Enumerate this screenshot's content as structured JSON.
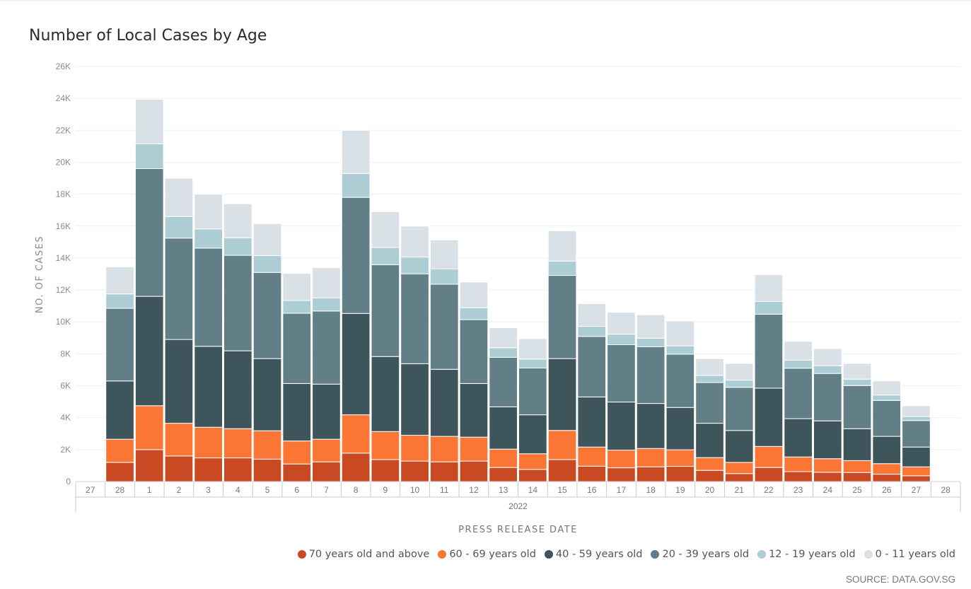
{
  "title": "Number of Local Cases by Age",
  "source": "SOURCE: DATA.GOV.SG",
  "chart_data": {
    "type": "bar",
    "stacked": true,
    "title": "Number of Local Cases by Age",
    "xlabel": "PRESS RELEASE DATE",
    "ylabel": "NO. OF CASES",
    "year_label": "2022",
    "ylim": [
      0,
      26000
    ],
    "yticks": [
      "0",
      "2K",
      "4K",
      "6K",
      "8K",
      "10K",
      "12K",
      "14K",
      "16K",
      "18K",
      "20K",
      "22K",
      "24K",
      "26K"
    ],
    "grid": true,
    "legend_position": "bottom-right",
    "categories": [
      "27",
      "28",
      "1",
      "2",
      "3",
      "4",
      "5",
      "6",
      "7",
      "8",
      "9",
      "10",
      "11",
      "12",
      "13",
      "14",
      "15",
      "16",
      "17",
      "18",
      "19",
      "20",
      "21",
      "22",
      "23",
      "24",
      "25",
      "26",
      "27",
      "28"
    ],
    "series": [
      {
        "name": "70 years old and above",
        "color": "#c94a22",
        "values": [
          null,
          1200,
          2000,
          1600,
          1480,
          1480,
          1400,
          1100,
          1230,
          1780,
          1380,
          1280,
          1230,
          1280,
          880,
          760,
          1380,
          960,
          860,
          920,
          950,
          700,
          500,
          880,
          620,
          580,
          560,
          460,
          360,
          null
        ]
      },
      {
        "name": "60 - 69 years old",
        "color": "#fb7635",
        "values": [
          null,
          1450,
          2750,
          2050,
          1920,
          1830,
          1780,
          1440,
          1420,
          2400,
          1750,
          1620,
          1600,
          1500,
          1150,
          980,
          1820,
          1200,
          1110,
          1150,
          1040,
          800,
          700,
          1320,
          920,
          850,
          750,
          660,
          560,
          null
        ]
      },
      {
        "name": "40 - 59 years old",
        "color": "#3f555c",
        "values": [
          null,
          3650,
          6850,
          5250,
          5070,
          4880,
          4520,
          3600,
          3450,
          6350,
          4700,
          4480,
          4200,
          3360,
          2650,
          2440,
          4500,
          3140,
          3010,
          2820,
          2650,
          2150,
          2000,
          3650,
          2400,
          2370,
          2000,
          1710,
          1240,
          null
        ]
      },
      {
        "name": "20 - 39 years old",
        "color": "#627f87",
        "values": [
          null,
          4550,
          8000,
          6350,
          6150,
          5980,
          5400,
          4400,
          4580,
          7270,
          5750,
          5620,
          5330,
          4000,
          3100,
          2930,
          5210,
          3790,
          3590,
          3550,
          3340,
          2550,
          2700,
          4630,
          3160,
          2970,
          2700,
          2250,
          1660,
          null
        ]
      },
      {
        "name": "12 - 19 years old",
        "color": "#adcdd5",
        "values": [
          null,
          900,
          1550,
          1350,
          1200,
          1100,
          1050,
          800,
          820,
          1500,
          1080,
          1060,
          950,
          750,
          600,
          560,
          900,
          630,
          660,
          540,
          520,
          450,
          450,
          800,
          500,
          480,
          400,
          340,
          250,
          null
        ]
      },
      {
        "name": "0 - 11 years old",
        "color": "#d9e1e6",
        "values": [
          null,
          1700,
          2800,
          2400,
          2180,
          2130,
          2000,
          1700,
          1900,
          2700,
          2250,
          1940,
          1830,
          1610,
          1250,
          1280,
          1900,
          1420,
          1370,
          1470,
          1560,
          1050,
          1050,
          1680,
          1180,
          1080,
          990,
          880,
          680,
          null
        ]
      }
    ]
  }
}
